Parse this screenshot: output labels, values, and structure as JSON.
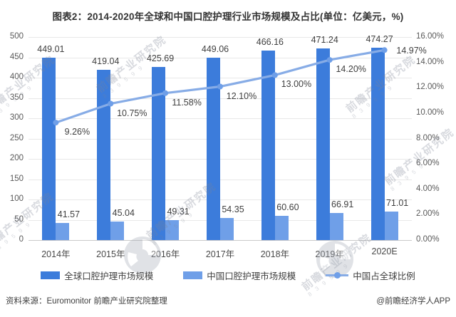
{
  "page": {
    "title": "图表2：2014-2020年全球和中国口腔护理行业市场规模及占比(单位：亿美元，%)"
  },
  "chart_data": {
    "type": "bar",
    "title": "图表2：2014-2020年全球和中国口腔护理行业市场规模及占比(单位：亿美元，%)",
    "categories": [
      "2014年",
      "2015年",
      "2016年",
      "2017年",
      "2018年",
      "2019年",
      "2020E"
    ],
    "series": [
      {
        "name": "全球口腔护理市场规模",
        "type": "bar",
        "axis": "left",
        "color": "#3c7cdb",
        "values": [
          449.01,
          419.04,
          425.69,
          449.06,
          466.16,
          471.24,
          474.27
        ]
      },
      {
        "name": "中国口腔护理市场规模",
        "type": "bar",
        "axis": "left",
        "color": "#6f9fe8",
        "values": [
          41.57,
          45.04,
          49.31,
          54.35,
          60.6,
          66.91,
          71.01
        ]
      },
      {
        "name": "中国占全球比例",
        "type": "line",
        "axis": "right",
        "color": "#87ace6",
        "marker_color": "#6f9fe8",
        "values": [
          9.26,
          10.75,
          11.58,
          12.1,
          13.0,
          14.2,
          14.97
        ]
      }
    ],
    "left_axis": {
      "min": 0,
      "max": 500,
      "step": 50,
      "unit": "亿美元"
    },
    "right_axis": {
      "min": 0,
      "max": 16,
      "step": 2,
      "unit": "%",
      "format": "0.00%"
    },
    "grid": true,
    "legend_position": "bottom"
  },
  "legend": {
    "items": [
      {
        "label": "全球口腔护理市场规模",
        "swatch": "bar",
        "color": "#3c7cdb"
      },
      {
        "label": "中国口腔护理市场规模",
        "swatch": "bar",
        "color": "#6f9fe8"
      },
      {
        "label": "中国占全球比例",
        "swatch": "line",
        "color": "#87ace6"
      }
    ]
  },
  "footer": {
    "source": "资料来源：Euromonitor 前瞻产业研究院整理",
    "credit": "@前瞻经济学人APP"
  },
  "watermark": {
    "text": "前瞻产业研究院",
    "digits": "8 3 9 5 9 9"
  }
}
